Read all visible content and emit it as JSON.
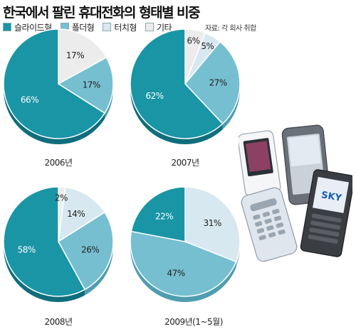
{
  "title": "한국에서 팔린 휴대전화의 형태별 비중",
  "source": "자료: 각 회사 취합",
  "colors": {
    "slide": "#1a95a5",
    "folder": "#76bfd0",
    "touch": "#d8e8f0",
    "other": "#ececec"
  },
  "legend": [
    {
      "label": "슬라이드형",
      "color": "#1a95a5"
    },
    {
      "label": "폴더형",
      "color": "#76bfd0"
    },
    {
      "label": "터치형",
      "color": "#d8e8f0"
    },
    {
      "label": "기타",
      "color": "#ececec"
    }
  ],
  "chart_data": [
    {
      "type": "pie",
      "year_label": "2006년",
      "slices": [
        {
          "name": "슬라이드형",
          "value": 66
        },
        {
          "name": "폴더형",
          "value": 17
        },
        {
          "name": "기타",
          "value": 17
        }
      ]
    },
    {
      "type": "pie",
      "year_label": "2007년",
      "slices": [
        {
          "name": "슬라이드형",
          "value": 62
        },
        {
          "name": "폴더형",
          "value": 27
        },
        {
          "name": "터치형",
          "value": 5
        },
        {
          "name": "기타",
          "value": 6
        }
      ]
    },
    {
      "type": "pie",
      "year_label": "2008년",
      "slices": [
        {
          "name": "슬라이드형",
          "value": 58
        },
        {
          "name": "폴더형",
          "value": 26
        },
        {
          "name": "터치형",
          "value": 14
        },
        {
          "name": "기타",
          "value": 2
        }
      ]
    },
    {
      "type": "pie",
      "year_label": "2009년(1~5월)",
      "slices": [
        {
          "name": "슬라이드형",
          "value": 22
        },
        {
          "name": "폴더형",
          "value": 47
        },
        {
          "name": "터치형",
          "value": 31
        }
      ]
    }
  ],
  "phone_brand_text": "SKY"
}
